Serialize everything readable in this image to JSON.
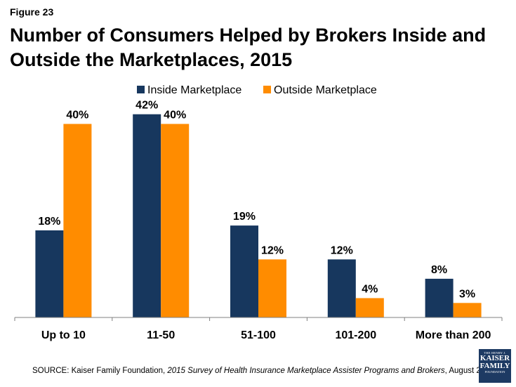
{
  "figure_label": "Figure 23",
  "title": "Number of Consumers Helped by Brokers Inside and Outside the Marketplaces, 2015",
  "source": {
    "prefix": "SOURCE: Kaiser Family Foundation, ",
    "italic": "2015 Survey of Health Insurance Marketplace Assister Programs and Brokers",
    "suffix": ", August 2015."
  },
  "logo": {
    "line1": "THE HENRY J.",
    "line2": "KAISER",
    "line3": "FAMILY",
    "line4": "FOUNDATION"
  },
  "chart_data": {
    "type": "bar",
    "categories": [
      "Up to 10",
      "11-50",
      "51-100",
      "101-200",
      "More than 200"
    ],
    "series": [
      {
        "name": "Inside Marketplace",
        "values": [
          18,
          42,
          19,
          12,
          8
        ],
        "color": "#17375e"
      },
      {
        "name": "Outside Marketplace",
        "values": [
          40,
          40,
          12,
          4,
          3
        ],
        "color": "#ff8c00"
      }
    ],
    "data_labels": [
      [
        "18%",
        "42%",
        "19%",
        "12%",
        "8%"
      ],
      [
        "40%",
        "40%",
        "12%",
        "4%",
        "3%"
      ]
    ],
    "ylim": [
      0,
      45
    ],
    "grid": false,
    "legend_position": "top"
  }
}
